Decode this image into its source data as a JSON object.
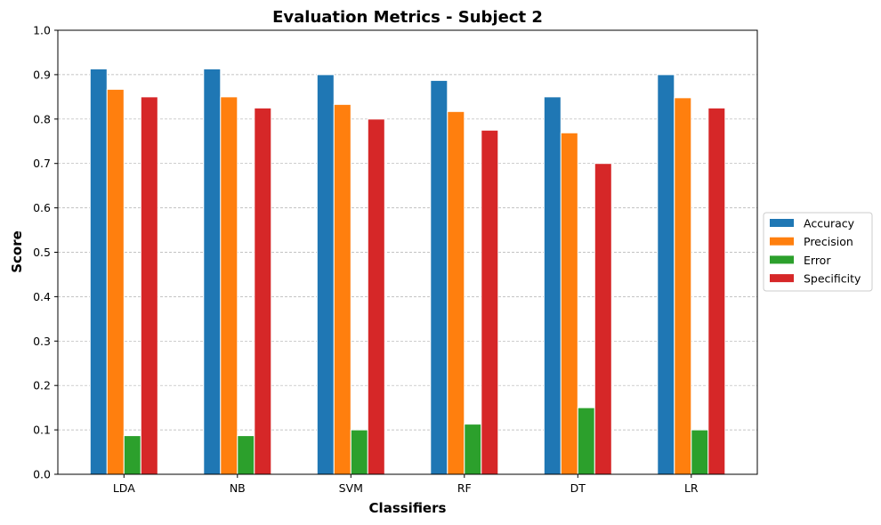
{
  "chart_data": {
    "type": "bar",
    "title": "Evaluation Metrics - Subject 2",
    "xlabel": "Classifiers",
    "ylabel": "Score",
    "categories": [
      "LDA",
      "NB",
      "SVM",
      "RF",
      "DT",
      "LR"
    ],
    "ylim": [
      0.0,
      1.0
    ],
    "yticks": [
      "0.0",
      "0.1",
      "0.2",
      "0.3",
      "0.4",
      "0.5",
      "0.6",
      "0.7",
      "0.8",
      "0.9",
      "1.0"
    ],
    "grid": "horizontal dashed",
    "legend_position": "right",
    "series": [
      {
        "name": "Accuracy",
        "color": "#1f77b4",
        "values": [
          0.913,
          0.913,
          0.9,
          0.887,
          0.85,
          0.9
        ]
      },
      {
        "name": "Precision",
        "color": "#ff7f0e",
        "values": [
          0.867,
          0.85,
          0.833,
          0.817,
          0.769,
          0.848
        ]
      },
      {
        "name": "Error",
        "color": "#2ca02c",
        "values": [
          0.087,
          0.087,
          0.1,
          0.113,
          0.15,
          0.1
        ]
      },
      {
        "name": "Specificity",
        "color": "#d62728",
        "values": [
          0.85,
          0.825,
          0.8,
          0.775,
          0.7,
          0.825
        ]
      }
    ]
  }
}
